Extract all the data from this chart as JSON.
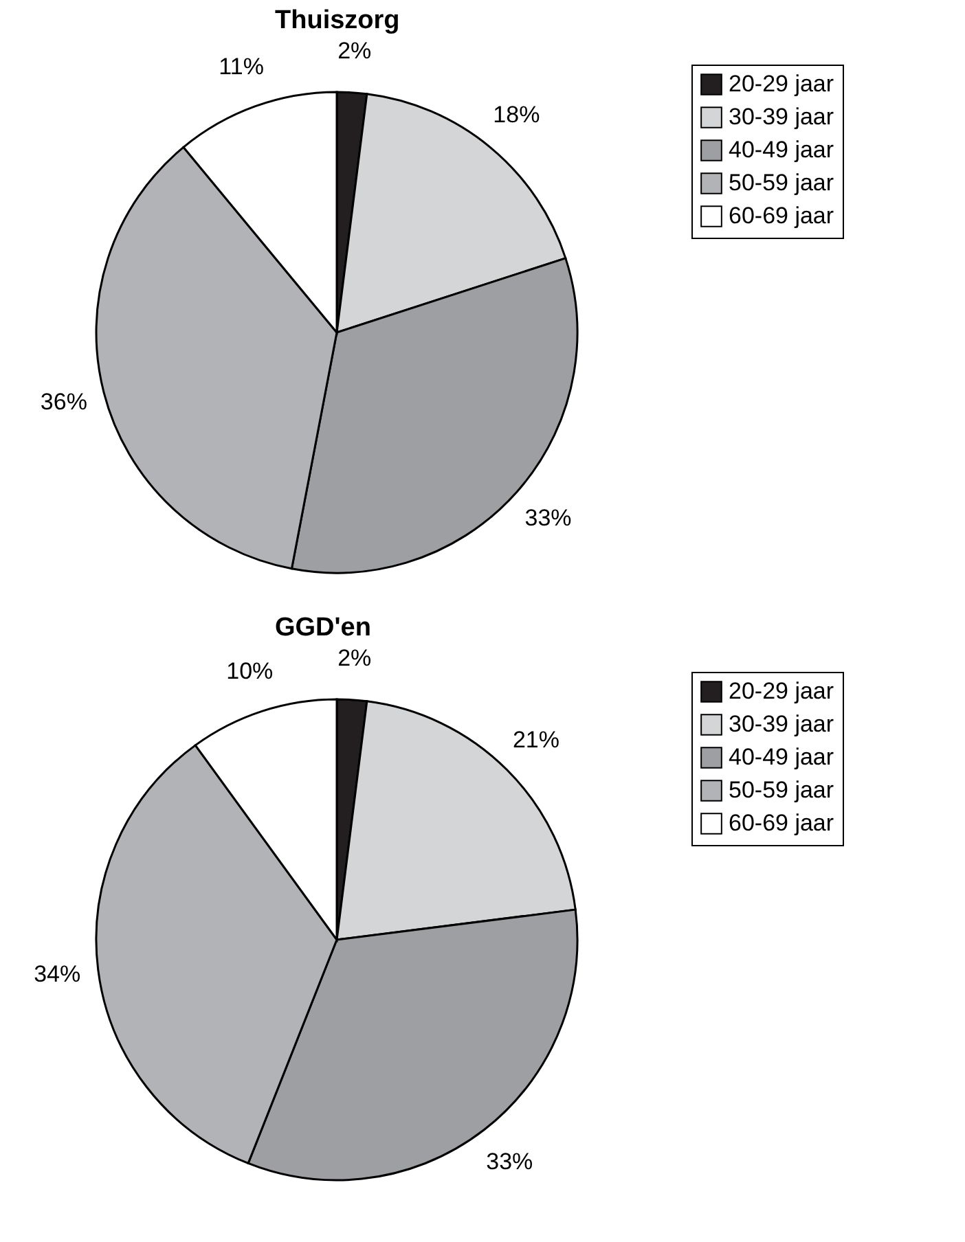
{
  "chart_data": [
    {
      "type": "pie",
      "title": "Thuiszorg",
      "categories": [
        "20-29 jaar",
        "30-39 jaar",
        "40-49 jaar",
        "50-59 jaar",
        "60-69 jaar"
      ],
      "values": [
        2,
        18,
        33,
        36,
        11
      ],
      "value_labels": [
        "2%",
        "18%",
        "33%",
        "36%",
        "11%"
      ],
      "colors": [
        "#231f20",
        "#d4d5d7",
        "#9d9fa2",
        "#b1b3b6",
        "#ffffff"
      ],
      "legend": "right"
    },
    {
      "type": "pie",
      "title": "GGD'en",
      "categories": [
        "20-29 jaar",
        "30-39 jaar",
        "40-49 jaar",
        "50-59 jaar",
        "60-69 jaar"
      ],
      "values": [
        2,
        21,
        33,
        34,
        10
      ],
      "value_labels": [
        "2%",
        "21%",
        "33%",
        "34%",
        "10%"
      ],
      "colors": [
        "#231f20",
        "#d4d5d7",
        "#9d9fa2",
        "#b1b3b6",
        "#ffffff"
      ],
      "legend": "right"
    }
  ]
}
